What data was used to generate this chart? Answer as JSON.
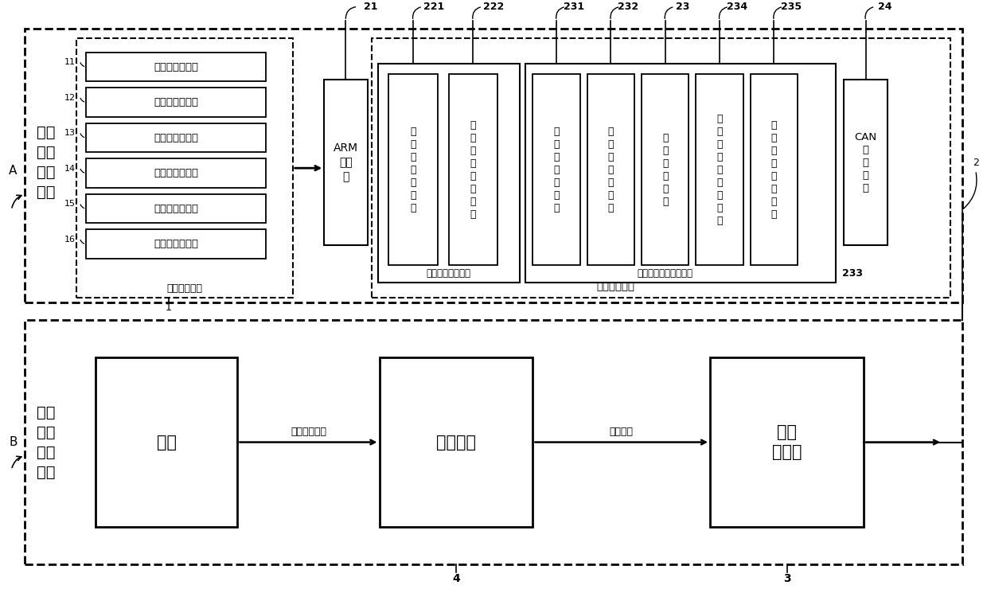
{
  "bg_color": "#ffffff",
  "fig_width": 12.4,
  "fig_height": 7.4,
  "module_A_label": "乘客\n姿态\n检测\n模块",
  "module_B_label": "车辆\n启动\n控制\n模块",
  "cameras": [
    {
      "id": "11",
      "label": "车内左前摄像头"
    },
    {
      "id": "12",
      "label": "车内右前摄像头"
    },
    {
      "id": "13",
      "label": "车内右侧摄像头"
    },
    {
      "id": "14",
      "label": "车内右后摄像头"
    },
    {
      "id": "15",
      "label": "车内左后摄像头"
    },
    {
      "id": "16",
      "label": "车内左侧摄像头"
    }
  ],
  "image_collection_label": "图像采集模块",
  "arm_label": "ARM\n控制\n器",
  "arm_id": "21",
  "inner_3d_label": "车内三维重建模块",
  "inner_3d_sub": [
    {
      "id": "221",
      "label": "图\n像\n预\n处\n理\n模\n块"
    },
    {
      "id": "22",
      "label": "车\n内\n立\n体\n重\n建\n模\n块"
    }
  ],
  "inner_3d_id_222": "222",
  "passenger_detect_label": "车内乘客姿态检测模块",
  "passenger_detect_sub": [
    {
      "id": "231",
      "label": "乘\n客\n特\n征\n数\n据\n库"
    },
    {
      "id": "232",
      "label": "乘\n客\n姿\n态\n数\n据\n库"
    },
    {
      "id": "23",
      "label": "乘\n客\n检\n测\n模\n块"
    },
    {
      "id": "234",
      "label": "乘\n客\n关\n键\n点\n检\n测\n模\n块"
    },
    {
      "id": "235",
      "label": "乘\n客\n姿\n态\n识\n别\n模\n块"
    }
  ],
  "passenger_detect_id": "233",
  "can_label": "CAN\n通\n信\n模\n块",
  "can_id": "24",
  "vehicle_terminal_label": "车载计算终端",
  "bottom_boxes": [
    {
      "label": "车辆",
      "id": ""
    },
    {
      "label": "驱动电机",
      "id": "4"
    },
    {
      "label": "整车\n控制器",
      "id": "3"
    }
  ],
  "arrow1_label": "车轮驱动力矩",
  "arrow2_label": "力矩指令"
}
